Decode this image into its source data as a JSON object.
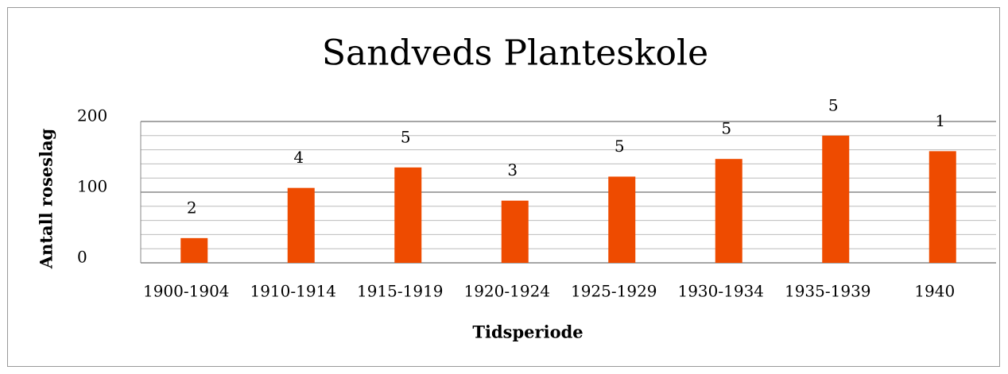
{
  "chart_data": {
    "type": "bar",
    "title": "Sandveds Planteskole",
    "x_label": "Tidsperiode",
    "y_label": "Antall roseslag",
    "categories": [
      "1900-1904",
      "1910-1914",
      "1915-1919",
      "1920-1924",
      "1925-1929",
      "1930-1934",
      "1935-1939",
      "1940"
    ],
    "values": [
      35,
      106,
      135,
      88,
      122,
      147,
      180,
      158
    ],
    "annotations": [
      2,
      4,
      5,
      3,
      5,
      5,
      5,
      1
    ],
    "color": "#ee4b00",
    "ylim": [
      0,
      200
    ],
    "yticks": [
      0,
      100,
      200
    ],
    "minor_yticks": [
      20,
      40,
      60,
      80,
      120,
      140,
      160,
      180
    ],
    "grid": true
  }
}
